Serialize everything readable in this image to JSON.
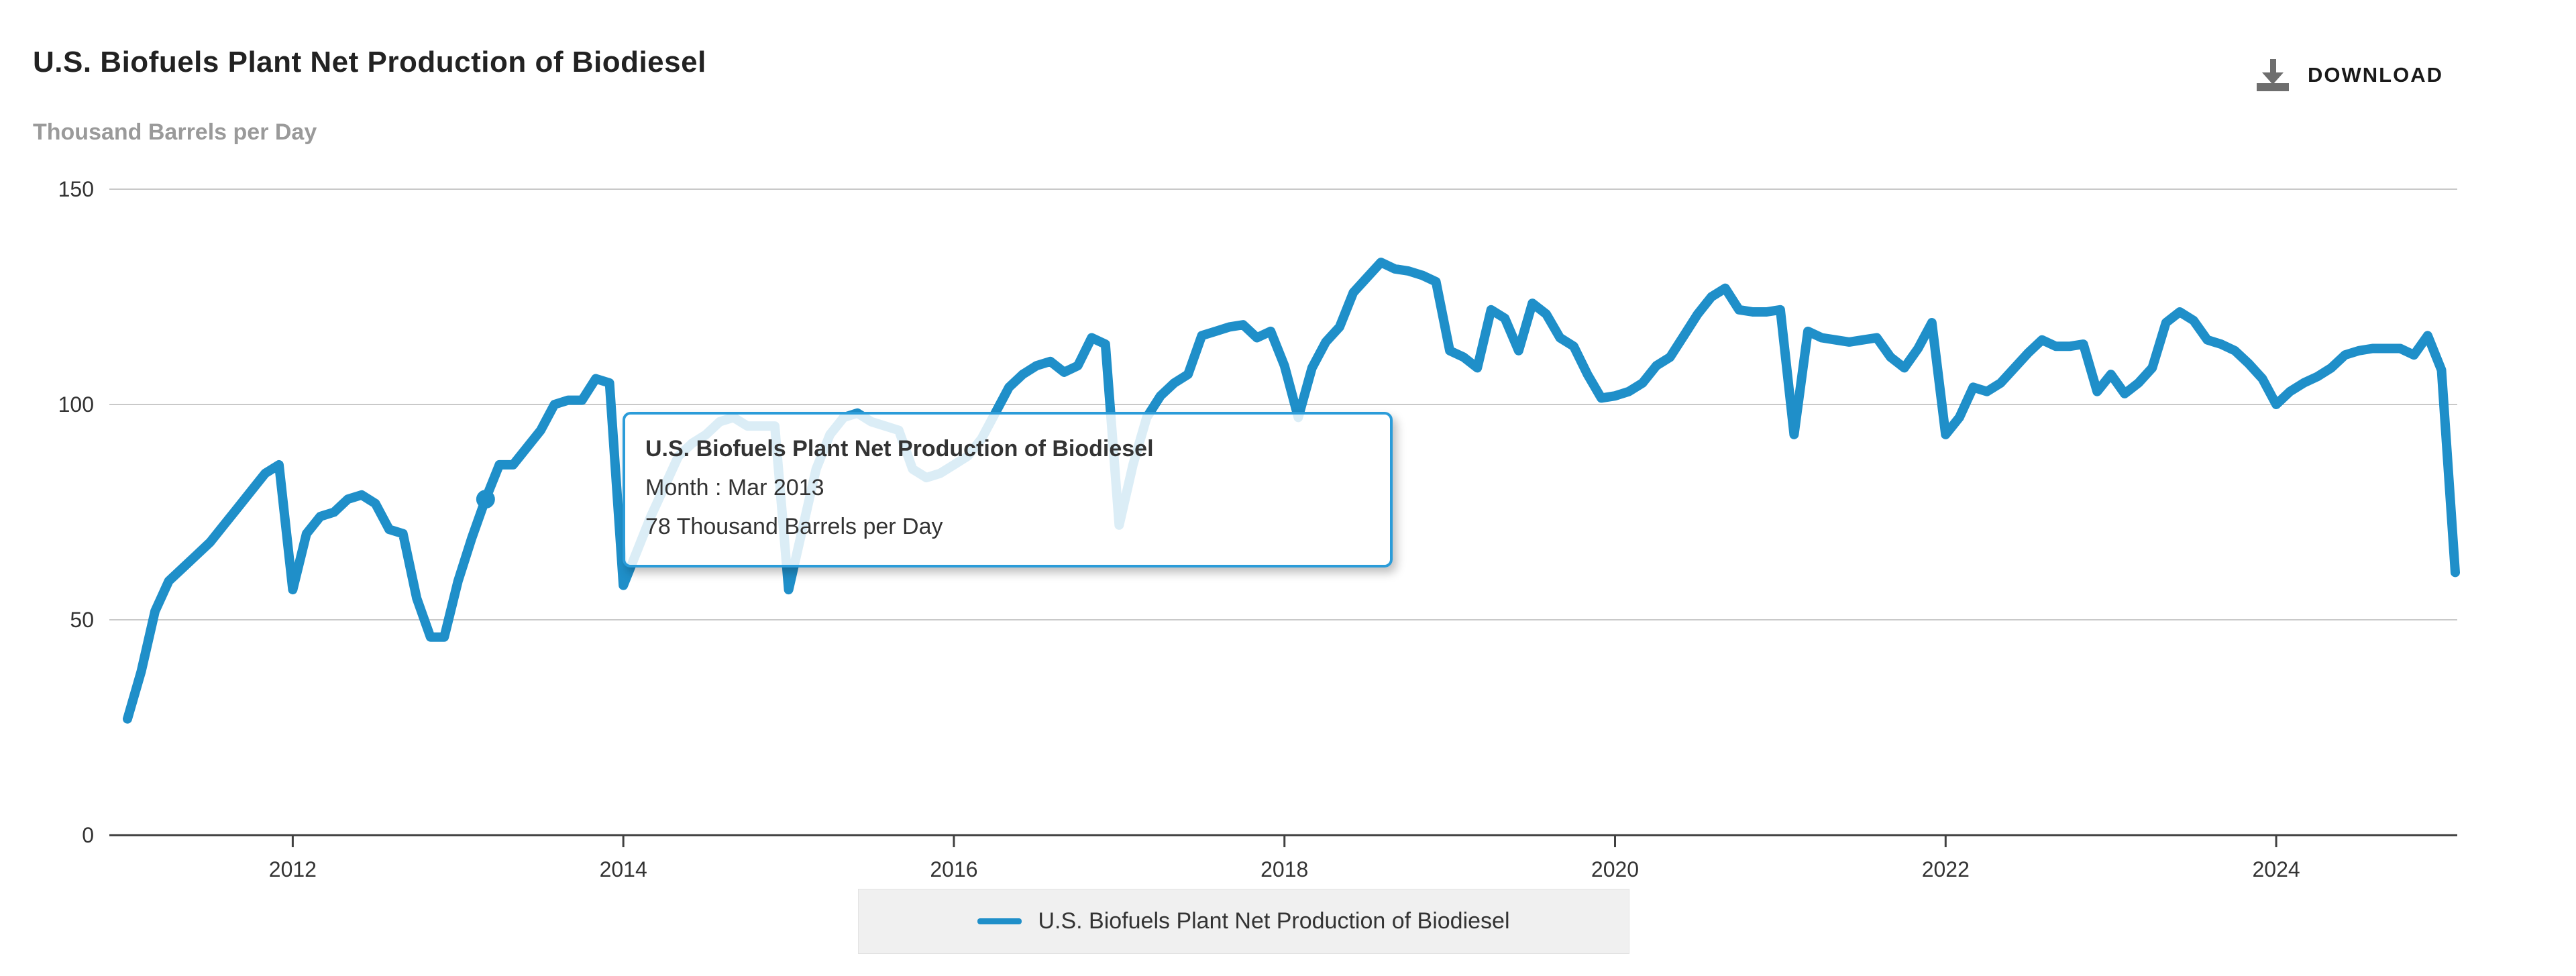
{
  "header": {
    "title": "U.S. Biofuels Plant Net Production of Biodiesel",
    "subtitle": "Thousand Barrels per Day",
    "download_label": "DOWNLOAD"
  },
  "tooltip": {
    "title": "U.S. Biofuels Plant Net Production of Biodiesel",
    "line1": "Month : Mar 2013",
    "line2": "78 Thousand Barrels per Day"
  },
  "legend": {
    "label": "U.S. Biofuels Plant Net Production of Biodiesel"
  },
  "colors": {
    "line": "#1f8fc9",
    "marker": "#1f8fc9",
    "tooltip_border": "#2b9cd9",
    "grid": "#c9c9c9",
    "axis": "#404040",
    "title_text": "#222222",
    "subtitle_text": "#9a9a9a",
    "legend_bg": "#f0f0f0"
  },
  "chart_data": {
    "type": "line",
    "title": "U.S. Biofuels Plant Net Production of Biodiesel",
    "xlabel": "",
    "ylabel": "Thousand Barrels per Day",
    "ylim": [
      0,
      150
    ],
    "yticks": [
      0,
      50,
      100,
      150
    ],
    "xticks": [
      2012,
      2014,
      2016,
      2018,
      2020,
      2022,
      2024
    ],
    "grid": "horizontal",
    "legend_position": "bottom-center",
    "frequency": "monthly",
    "start_month": "Jan 2011",
    "end_month": "Feb 2025",
    "highlight_point": {
      "index": 26,
      "month": "Mar 2013",
      "value": 78
    },
    "series": [
      {
        "name": "U.S. Biofuels Plant Net Production of Biodiesel",
        "values": [
          27,
          38,
          52,
          59,
          62,
          65,
          68,
          72,
          76,
          80,
          84,
          86,
          57,
          70,
          74,
          75,
          78,
          79,
          77,
          71,
          70,
          55,
          46,
          46,
          59,
          69,
          78,
          86,
          86,
          90,
          94,
          100,
          101,
          101,
          106,
          105,
          58,
          66,
          74,
          81,
          88,
          91,
          93,
          96,
          97,
          95,
          95,
          95,
          57,
          71,
          85,
          93,
          97,
          98,
          96,
          95,
          94,
          85,
          83,
          84,
          86,
          88,
          92,
          98,
          104,
          107,
          109,
          110,
          107.5,
          109,
          115.5,
          114,
          72,
          86,
          97,
          102,
          105,
          107,
          116,
          117,
          118,
          118.5,
          115.5,
          117,
          109,
          97,
          108.5,
          114.5,
          118,
          126,
          129.5,
          133,
          131.5,
          131,
          130,
          128.5,
          112.5,
          111,
          108.5,
          122,
          120,
          112.5,
          123.5,
          121,
          115.5,
          113.5,
          107,
          101.5,
          102,
          103,
          105,
          109,
          111,
          116,
          121,
          125,
          127,
          122,
          121.5,
          121.5,
          122,
          93,
          117,
          115.5,
          115,
          114.5,
          115,
          115.5,
          111,
          108.5,
          113,
          119,
          93,
          97,
          104,
          103,
          105,
          108.5,
          112,
          115,
          113.5,
          113.5,
          114,
          103,
          107,
          102.5,
          105,
          108.5,
          119,
          121.5,
          119.5,
          115,
          114,
          112.5,
          109.5,
          106,
          100,
          103,
          105,
          106.5,
          108.5,
          111.5,
          112.5,
          113,
          113,
          113,
          111.5,
          116,
          108,
          61
        ]
      }
    ]
  }
}
